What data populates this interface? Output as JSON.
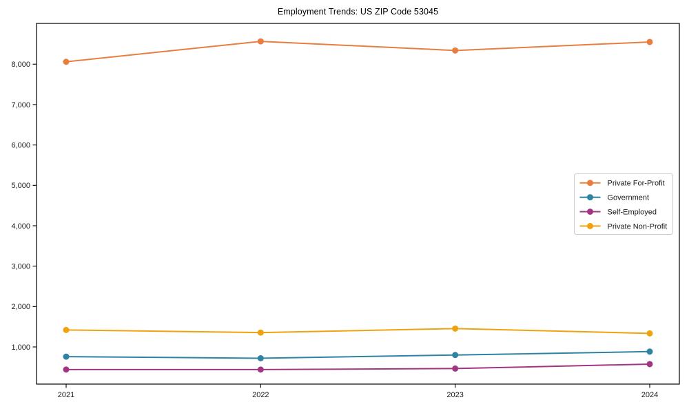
{
  "chart_data": {
    "type": "line",
    "title": "Employment Trends: US ZIP Code 53045",
    "xlabel": "",
    "ylabel": "",
    "x": [
      "2021",
      "2022",
      "2023",
      "2024"
    ],
    "series": [
      {
        "name": "Private For-Profit",
        "color": "#E87D3F",
        "values": [
          8060,
          8565,
          8340,
          8550
        ]
      },
      {
        "name": "Government",
        "color": "#2F82A2",
        "values": [
          760,
          720,
          800,
          885
        ]
      },
      {
        "name": "Self-Employed",
        "color": "#A23582",
        "values": [
          440,
          440,
          465,
          575
        ]
      },
      {
        "name": "Private Non-Profit",
        "color": "#F0A20E",
        "values": [
          1420,
          1355,
          1455,
          1335
        ]
      }
    ],
    "yticks": {
      "values": [
        1000,
        2000,
        3000,
        4000,
        5000,
        6000,
        7000,
        8000
      ],
      "labels": [
        "1,000",
        "2,000",
        "3,000",
        "4,000",
        "5,000",
        "6,000",
        "7,000",
        "8,000"
      ]
    },
    "ylim": [
      80,
      9010
    ],
    "grid": false,
    "marker": "circle",
    "legend_position": "center right",
    "colors": {
      "background": "#ffffff",
      "axis": "#000000",
      "tick_text": "#1a1a1a",
      "legend_border": "#cccccc",
      "legend_background": "#ffffff"
    }
  }
}
